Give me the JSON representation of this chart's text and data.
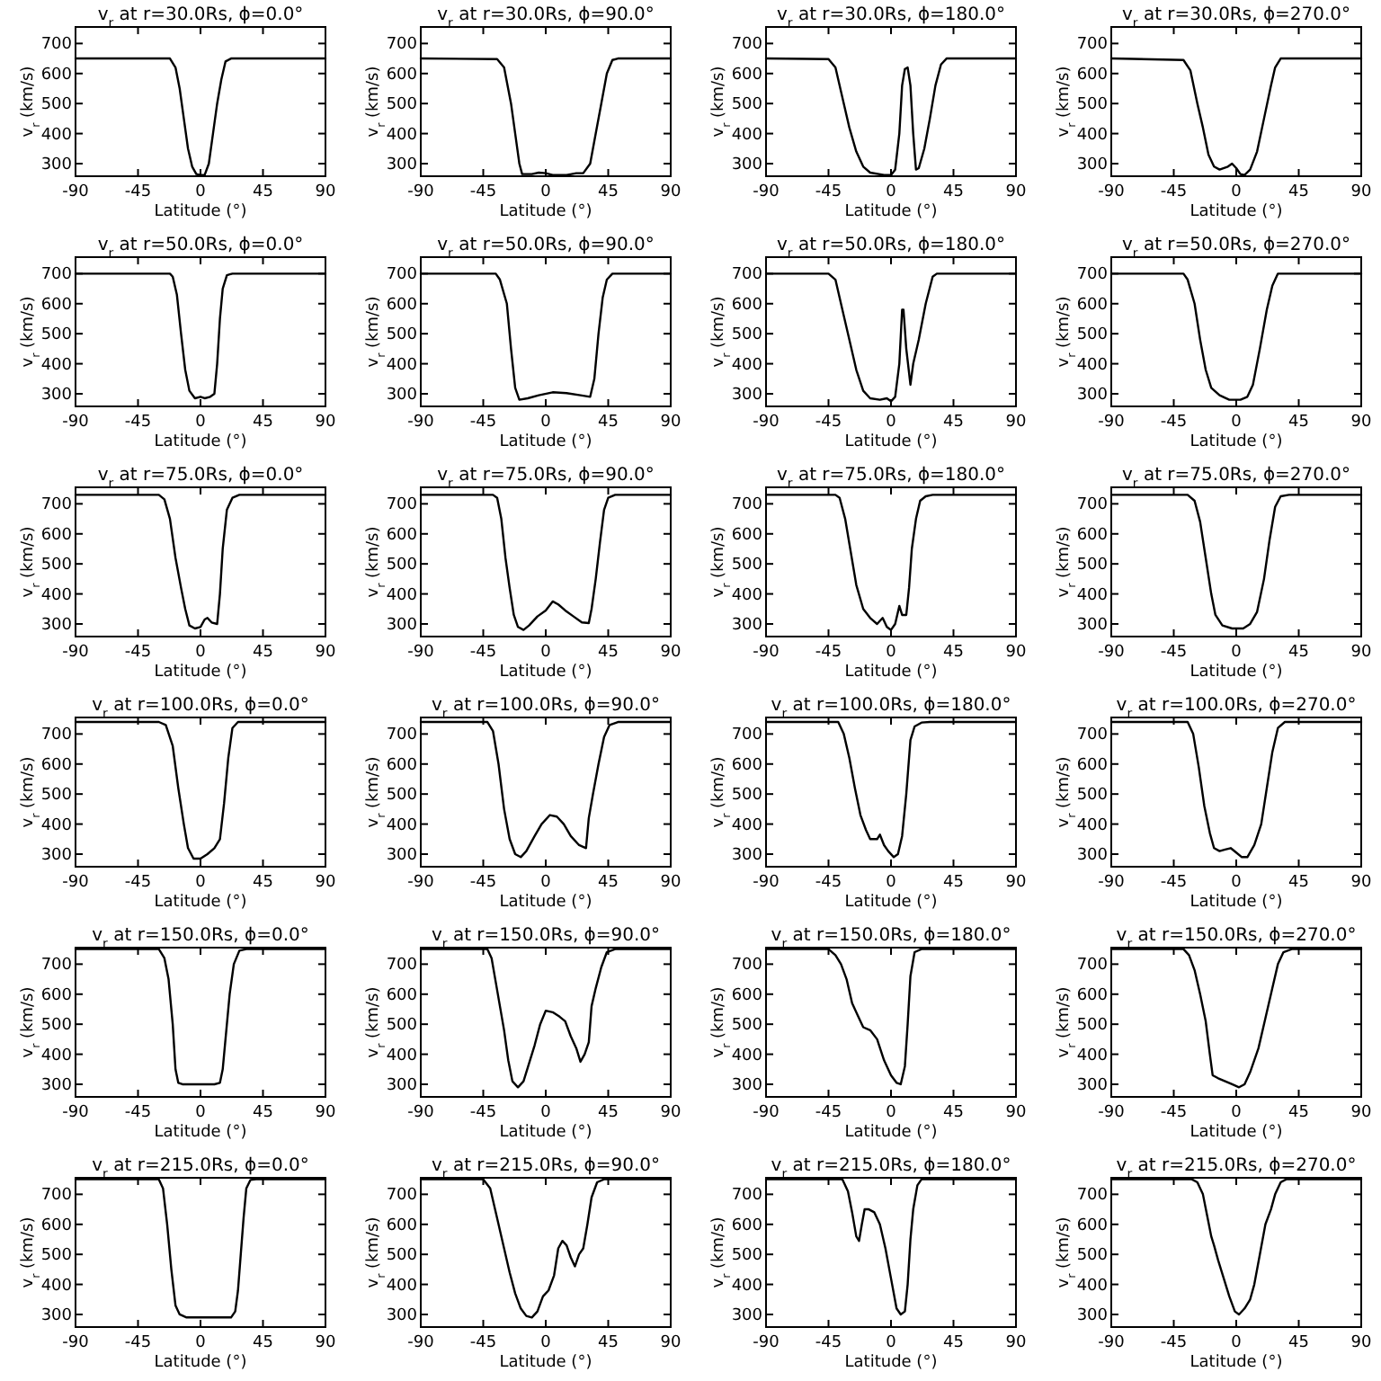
{
  "chart_data": [
    {
      "type": "line",
      "title": "v$_{r}$ at r=30.0Rs, ϕ=0.0°",
      "xlabel": "Latitude (°)",
      "ylabel": "v$_{r}$ (km/s)",
      "xlim": [
        -90,
        90
      ],
      "ylim": [
        258,
        755
      ],
      "xticks": [
        -90,
        -45,
        0,
        45,
        90
      ],
      "yticks": [
        300,
        400,
        500,
        600,
        700
      ],
      "color": "#000000",
      "x": [
        -90,
        -22,
        -18,
        -15,
        -12,
        -9,
        -6,
        -3,
        0,
        3,
        6,
        9,
        12,
        15,
        18,
        22,
        90
      ],
      "values": [
        650,
        650,
        620,
        550,
        450,
        350,
        290,
        265,
        262,
        262,
        300,
        400,
        500,
        580,
        640,
        650,
        650
      ]
    },
    {
      "type": "line",
      "title": "v$_{r}$ at r=30.0Rs, ϕ=90.0°",
      "xlabel": "Latitude (°)",
      "ylabel": "v$_{r}$ (km/s)",
      "xlim": [
        -90,
        90
      ],
      "ylim": [
        258,
        755
      ],
      "xticks": [
        -90,
        -45,
        0,
        45,
        90
      ],
      "yticks": [
        300,
        400,
        500,
        600,
        700
      ],
      "color": "#000000",
      "x": [
        -90,
        -35,
        -30,
        -25,
        -22,
        -19,
        -17,
        -10,
        -5,
        0,
        5,
        15,
        22,
        27,
        32,
        36,
        40,
        44,
        48,
        52,
        90
      ],
      "values": [
        650,
        648,
        620,
        500,
        400,
        300,
        265,
        265,
        270,
        268,
        262,
        262,
        268,
        268,
        300,
        400,
        500,
        600,
        645,
        650,
        650
      ]
    },
    {
      "type": "line",
      "title": "v$_{r}$ at r=30.0Rs, ϕ=180.0°",
      "xlabel": "Latitude (°)",
      "ylabel": "v$_{r}$ (km/s)",
      "xlim": [
        -90,
        90
      ],
      "ylim": [
        258,
        755
      ],
      "xticks": [
        -90,
        -45,
        0,
        45,
        90
      ],
      "yticks": [
        300,
        400,
        500,
        600,
        700
      ],
      "color": "#000000",
      "x": [
        -90,
        -45,
        -40,
        -35,
        -30,
        -25,
        -20,
        -15,
        -5,
        0,
        3,
        6,
        8,
        10,
        12,
        14,
        16,
        18,
        20,
        24,
        28,
        32,
        36,
        40,
        90
      ],
      "values": [
        650,
        648,
        620,
        520,
        420,
        340,
        290,
        270,
        262,
        262,
        280,
        400,
        560,
        615,
        620,
        560,
        400,
        280,
        285,
        350,
        450,
        560,
        630,
        650,
        650
      ]
    },
    {
      "type": "line",
      "title": "v$_{r}$ at r=30.0Rs, ϕ=270.0°",
      "xlabel": "Latitude (°)",
      "ylabel": "v$_{r}$ (km/s)",
      "xlim": [
        -90,
        90
      ],
      "ylim": [
        258,
        755
      ],
      "xticks": [
        -90,
        -45,
        0,
        45,
        90
      ],
      "yticks": [
        300,
        400,
        500,
        600,
        700
      ],
      "color": "#000000",
      "x": [
        -90,
        -38,
        -33,
        -28,
        -24,
        -20,
        -16,
        -12,
        -6,
        -3,
        0,
        3,
        6,
        10,
        15,
        20,
        25,
        28,
        32,
        90
      ],
      "values": [
        650,
        645,
        610,
        500,
        420,
        330,
        290,
        280,
        290,
        300,
        285,
        265,
        262,
        280,
        340,
        450,
        560,
        620,
        650,
        650
      ]
    },
    {
      "type": "line",
      "title": "v$_{r}$ at r=50.0Rs, ϕ=0.0°",
      "xlabel": "Latitude (°)",
      "ylabel": "v$_{r}$ (km/s)",
      "xlim": [
        -90,
        90
      ],
      "ylim": [
        258,
        755
      ],
      "xticks": [
        -90,
        -45,
        0,
        45,
        90
      ],
      "yticks": [
        300,
        400,
        500,
        600,
        700
      ],
      "color": "#000000",
      "x": [
        -90,
        -22,
        -20,
        -17,
        -14,
        -11,
        -8,
        -4,
        0,
        3,
        7,
        10,
        12,
        14,
        16,
        19,
        23,
        90
      ],
      "values": [
        700,
        700,
        690,
        630,
        500,
        380,
        310,
        285,
        290,
        285,
        290,
        300,
        400,
        550,
        650,
        695,
        700,
        700
      ]
    },
    {
      "type": "line",
      "title": "v$_{r}$ at r=50.0Rs, ϕ=90.0°",
      "xlabel": "Latitude (°)",
      "ylabel": "v$_{r}$ (km/s)",
      "xlim": [
        -90,
        90
      ],
      "ylim": [
        258,
        755
      ],
      "xticks": [
        -90,
        -45,
        0,
        45,
        90
      ],
      "yticks": [
        300,
        400,
        500,
        600,
        700
      ],
      "color": "#000000",
      "x": [
        -90,
        -36,
        -33,
        -28,
        -25,
        -22,
        -19,
        -13,
        -5,
        5,
        15,
        25,
        32,
        35,
        38,
        41,
        44,
        48,
        90
      ],
      "values": [
        700,
        700,
        680,
        600,
        450,
        320,
        280,
        285,
        295,
        305,
        302,
        295,
        290,
        350,
        500,
        620,
        680,
        700,
        700
      ]
    },
    {
      "type": "line",
      "title": "v$_{r}$ at r=50.0Rs, ϕ=180.0°",
      "xlabel": "Latitude (°)",
      "ylabel": "v$_{r}$ (km/s)",
      "xlim": [
        -90,
        90
      ],
      "ylim": [
        258,
        755
      ],
      "xticks": [
        -90,
        -45,
        0,
        45,
        90
      ],
      "yticks": [
        300,
        400,
        500,
        600,
        700
      ],
      "color": "#000000",
      "x": [
        -90,
        -45,
        -40,
        -35,
        -30,
        -25,
        -20,
        -15,
        -8,
        -3,
        0,
        3,
        6,
        8,
        9,
        11,
        14,
        16,
        20,
        25,
        30,
        33,
        90
      ],
      "values": [
        700,
        700,
        680,
        580,
        480,
        380,
        310,
        285,
        280,
        285,
        275,
        290,
        400,
        580,
        580,
        450,
        330,
        400,
        480,
        600,
        690,
        700,
        700
      ]
    },
    {
      "type": "line",
      "title": "v$_{r}$ at r=50.0Rs, ϕ=270.0°",
      "xlabel": "Latitude (°)",
      "ylabel": "v$_{r}$ (km/s)",
      "xlim": [
        -90,
        90
      ],
      "ylim": [
        258,
        755
      ],
      "xticks": [
        -90,
        -45,
        0,
        45,
        90
      ],
      "yticks": [
        300,
        400,
        500,
        600,
        700
      ],
      "color": "#000000",
      "x": [
        -90,
        -38,
        -35,
        -30,
        -26,
        -22,
        -18,
        -12,
        -5,
        3,
        8,
        12,
        17,
        22,
        26,
        30,
        90
      ],
      "values": [
        700,
        700,
        680,
        600,
        480,
        380,
        320,
        295,
        280,
        280,
        290,
        330,
        450,
        580,
        660,
        700,
        700
      ]
    },
    {
      "type": "line",
      "title": "v$_{r}$ at r=75.0Rs, ϕ=0.0°",
      "xlabel": "Latitude (°)",
      "ylabel": "v$_{r}$ (km/s)",
      "xlim": [
        -90,
        90
      ],
      "ylim": [
        258,
        755
      ],
      "xticks": [
        -90,
        -45,
        0,
        45,
        90
      ],
      "yticks": [
        300,
        400,
        500,
        600,
        700
      ],
      "color": "#000000",
      "x": [
        -90,
        -30,
        -26,
        -22,
        -18,
        -14,
        -11,
        -8,
        -4,
        0,
        3,
        5,
        8,
        12,
        14,
        16,
        19,
        23,
        28,
        90
      ],
      "values": [
        730,
        730,
        715,
        650,
        520,
        420,
        350,
        295,
        285,
        290,
        315,
        320,
        305,
        300,
        400,
        550,
        680,
        720,
        730,
        730
      ]
    },
    {
      "type": "line",
      "title": "v$_{r}$ at r=75.0Rs, ϕ=90.0°",
      "xlabel": "Latitude (°)",
      "ylabel": "v$_{r}$ (km/s)",
      "xlim": [
        -90,
        90
      ],
      "ylim": [
        258,
        755
      ],
      "xticks": [
        -90,
        -45,
        0,
        45,
        90
      ],
      "yticks": [
        300,
        400,
        500,
        600,
        700
      ],
      "color": "#000000",
      "x": [
        -90,
        -38,
        -35,
        -32,
        -29,
        -26,
        -23,
        -20,
        -16,
        -12,
        -6,
        0,
        5,
        9,
        14,
        20,
        26,
        31,
        33,
        36,
        39,
        42,
        45,
        50,
        90
      ],
      "values": [
        730,
        730,
        720,
        650,
        520,
        420,
        330,
        290,
        280,
        295,
        325,
        345,
        375,
        365,
        345,
        325,
        305,
        303,
        350,
        450,
        570,
        680,
        720,
        730,
        730
      ]
    },
    {
      "type": "line",
      "title": "v$_{r}$ at r=75.0Rs, ϕ=180.0°",
      "xlabel": "Latitude (°)",
      "ylabel": "v$_{r}$ (km/s)",
      "xlim": [
        -90,
        90
      ],
      "ylim": [
        258,
        755
      ],
      "xticks": [
        -90,
        -45,
        0,
        45,
        90
      ],
      "yticks": [
        300,
        400,
        500,
        600,
        700
      ],
      "color": "#000000",
      "x": [
        -90,
        -40,
        -37,
        -33,
        -29,
        -25,
        -20,
        -15,
        -10,
        -6,
        -3,
        0,
        3,
        6,
        8,
        11,
        13,
        15,
        18,
        21,
        25,
        30,
        90
      ],
      "values": [
        730,
        730,
        720,
        650,
        540,
        430,
        350,
        320,
        300,
        320,
        290,
        280,
        300,
        360,
        330,
        330,
        420,
        550,
        650,
        710,
        725,
        730,
        730
      ]
    },
    {
      "type": "line",
      "title": "v$_{r}$ at r=75.0Rs, ϕ=270.0°",
      "xlabel": "Latitude (°)",
      "ylabel": "v$_{r}$ (km/s)",
      "xlim": [
        -90,
        90
      ],
      "ylim": [
        258,
        755
      ],
      "xticks": [
        -90,
        -45,
        0,
        45,
        90
      ],
      "yticks": [
        300,
        400,
        500,
        600,
        700
      ],
      "color": "#000000",
      "x": [
        -90,
        -35,
        -30,
        -26,
        -22,
        -18,
        -15,
        -10,
        -3,
        5,
        10,
        15,
        20,
        24,
        28,
        32,
        38,
        90
      ],
      "values": [
        730,
        730,
        710,
        640,
        520,
        400,
        330,
        295,
        285,
        285,
        300,
        340,
        450,
        580,
        690,
        725,
        730,
        730
      ]
    },
    {
      "type": "line",
      "title": "v$_{r}$ at r=100.0Rs, ϕ=0.0°",
      "xlabel": "Latitude (°)",
      "ylabel": "v$_{r}$ (km/s)",
      "xlim": [
        -90,
        90
      ],
      "ylim": [
        258,
        755
      ],
      "xticks": [
        -90,
        -45,
        0,
        45,
        90
      ],
      "yticks": [
        300,
        400,
        500,
        600,
        700
      ],
      "color": "#000000",
      "x": [
        -90,
        -30,
        -25,
        -20,
        -16,
        -12,
        -9,
        -5,
        0,
        5,
        10,
        14,
        17,
        20,
        23,
        27,
        90
      ],
      "values": [
        740,
        740,
        730,
        660,
        520,
        400,
        320,
        285,
        285,
        300,
        320,
        350,
        470,
        620,
        720,
        740,
        740
      ]
    },
    {
      "type": "line",
      "title": "v$_{r}$ at r=100.0Rs, ϕ=90.0°",
      "xlabel": "Latitude (°)",
      "ylabel": "v$_{r}$ (km/s)",
      "xlim": [
        -90,
        90
      ],
      "ylim": [
        258,
        755
      ],
      "xticks": [
        -90,
        -45,
        0,
        45,
        90
      ],
      "yticks": [
        300,
        400,
        500,
        600,
        700
      ],
      "color": "#000000",
      "x": [
        -90,
        -42,
        -38,
        -34,
        -30,
        -26,
        -22,
        -18,
        -14,
        -8,
        -3,
        3,
        8,
        13,
        18,
        24,
        29,
        31,
        34,
        38,
        42,
        46,
        52,
        90
      ],
      "values": [
        740,
        740,
        710,
        600,
        450,
        350,
        300,
        290,
        310,
        360,
        400,
        430,
        425,
        400,
        360,
        330,
        320,
        420,
        500,
        600,
        690,
        730,
        740,
        740
      ]
    },
    {
      "type": "line",
      "title": "v$_{r}$ at r=100.0Rs, ϕ=180.0°",
      "xlabel": "Latitude (°)",
      "ylabel": "v$_{r}$ (km/s)",
      "xlim": [
        -90,
        90
      ],
      "ylim": [
        258,
        755
      ],
      "xticks": [
        -90,
        -45,
        0,
        45,
        90
      ],
      "yticks": [
        300,
        400,
        500,
        600,
        700
      ],
      "color": "#000000",
      "x": [
        -90,
        -38,
        -34,
        -30,
        -26,
        -22,
        -18,
        -15,
        -10,
        -8,
        -5,
        -2,
        2,
        5,
        8,
        11,
        14,
        17,
        22,
        28,
        90
      ],
      "values": [
        740,
        740,
        700,
        620,
        520,
        430,
        380,
        350,
        350,
        365,
        330,
        310,
        290,
        300,
        360,
        500,
        680,
        725,
        738,
        740,
        740
      ]
    },
    {
      "type": "line",
      "title": "v$_{r}$ at r=100.0Rs, ϕ=270.0°",
      "xlabel": "Latitude (°)",
      "ylabel": "v$_{r}$ (km/s)",
      "xlim": [
        -90,
        90
      ],
      "ylim": [
        258,
        755
      ],
      "xticks": [
        -90,
        -45,
        0,
        45,
        90
      ],
      "yticks": [
        300,
        400,
        500,
        600,
        700
      ],
      "color": "#000000",
      "x": [
        -90,
        -35,
        -31,
        -27,
        -23,
        -19,
        -16,
        -12,
        -8,
        -4,
        0,
        4,
        8,
        13,
        18,
        22,
        26,
        30,
        35,
        90
      ],
      "values": [
        740,
        740,
        700,
        590,
        460,
        370,
        320,
        310,
        315,
        320,
        305,
        290,
        290,
        330,
        400,
        520,
        640,
        720,
        740,
        740
      ]
    },
    {
      "type": "line",
      "title": "v$_{r}$ at r=150.0Rs, ϕ=0.0°",
      "xlabel": "Latitude (°)",
      "ylabel": "v$_{r}$ (km/s)",
      "xlim": [
        -90,
        90
      ],
      "ylim": [
        258,
        755
      ],
      "xticks": [
        -90,
        -45,
        0,
        45,
        90
      ],
      "yticks": [
        300,
        400,
        500,
        600,
        700
      ],
      "color": "#000000",
      "x": [
        -90,
        -30,
        -26,
        -23,
        -20,
        -18,
        -16,
        -13,
        10,
        14,
        16,
        18,
        21,
        24,
        28,
        33,
        90
      ],
      "values": [
        750,
        750,
        720,
        650,
        500,
        350,
        305,
        300,
        300,
        305,
        350,
        450,
        600,
        700,
        745,
        750,
        750
      ]
    },
    {
      "type": "line",
      "title": "v$_{r}$ at r=150.0Rs, ϕ=90.0°",
      "xlabel": "Latitude (°)",
      "ylabel": "v$_{r}$ (km/s)",
      "xlim": [
        -90,
        90
      ],
      "ylim": [
        258,
        755
      ],
      "xticks": [
        -90,
        -45,
        0,
        45,
        90
      ],
      "yticks": [
        300,
        400,
        500,
        600,
        700
      ],
      "color": "#000000",
      "x": [
        -90,
        -42,
        -39,
        -36,
        -33,
        -30,
        -27,
        -24,
        -20,
        -16,
        -12,
        -8,
        -4,
        0,
        5,
        10,
        14,
        18,
        22,
        25,
        28,
        31,
        33,
        36,
        40,
        44,
        50,
        90
      ],
      "values": [
        750,
        750,
        720,
        640,
        560,
        480,
        380,
        310,
        290,
        310,
        370,
        430,
        500,
        545,
        540,
        525,
        510,
        460,
        420,
        375,
        400,
        440,
        560,
        620,
        690,
        740,
        750,
        750
      ]
    },
    {
      "type": "line",
      "title": "v$_{r}$ at r=150.0Rs, ϕ=180.0°",
      "xlabel": "Latitude (°)",
      "ylabel": "v$_{r}$ (km/s)",
      "xlim": [
        -90,
        90
      ],
      "ylim": [
        258,
        755
      ],
      "xticks": [
        -90,
        -45,
        0,
        45,
        90
      ],
      "yticks": [
        300,
        400,
        500,
        600,
        700
      ],
      "color": "#000000",
      "x": [
        -90,
        -45,
        -40,
        -36,
        -32,
        -28,
        -24,
        -20,
        -15,
        -10,
        -5,
        0,
        4,
        7,
        10,
        12,
        14,
        17,
        22,
        90
      ],
      "values": [
        750,
        750,
        730,
        700,
        650,
        570,
        530,
        490,
        480,
        450,
        380,
        330,
        305,
        300,
        360,
        500,
        660,
        740,
        750,
        750
      ]
    },
    {
      "type": "line",
      "title": "v$_{r}$ at r=150.0Rs, ϕ=270.0°",
      "xlabel": "Latitude (°)",
      "ylabel": "v$_{r}$ (km/s)",
      "xlim": [
        -90,
        90
      ],
      "ylim": [
        258,
        755
      ],
      "xticks": [
        -90,
        -45,
        0,
        45,
        90
      ],
      "yticks": [
        300,
        400,
        500,
        600,
        700
      ],
      "color": "#000000",
      "x": [
        -90,
        -38,
        -34,
        -30,
        -26,
        -22,
        -19,
        -17,
        -13,
        -8,
        -3,
        2,
        6,
        10,
        16,
        21,
        26,
        30,
        34,
        40,
        90
      ],
      "values": [
        750,
        750,
        730,
        680,
        600,
        510,
        400,
        330,
        320,
        310,
        300,
        290,
        300,
        340,
        420,
        520,
        620,
        700,
        740,
        750,
        750
      ]
    },
    {
      "type": "line",
      "title": "v$_{r}$ at r=215.0Rs, ϕ=0.0°",
      "xlabel": "Latitude (°)",
      "ylabel": "v$_{r}$ (km/s)",
      "xlim": [
        -90,
        90
      ],
      "ylim": [
        258,
        755
      ],
      "xticks": [
        -90,
        -45,
        0,
        45,
        90
      ],
      "yticks": [
        300,
        400,
        500,
        600,
        700
      ],
      "color": "#000000",
      "x": [
        -90,
        -30,
        -27,
        -24,
        -21,
        -18,
        -15,
        -10,
        0,
        10,
        22,
        25,
        27,
        29,
        31,
        33,
        36,
        40,
        90
      ],
      "values": [
        750,
        750,
        720,
        600,
        450,
        330,
        300,
        290,
        290,
        290,
        290,
        310,
        380,
        500,
        620,
        720,
        748,
        750,
        750
      ]
    },
    {
      "type": "line",
      "title": "v$_{r}$ at r=215.0Rs, ϕ=90.0°",
      "xlabel": "Latitude (°)",
      "ylabel": "v$_{r}$ (km/s)",
      "xlim": [
        -90,
        90
      ],
      "ylim": [
        258,
        755
      ],
      "xticks": [
        -90,
        -45,
        0,
        45,
        90
      ],
      "yticks": [
        300,
        400,
        500,
        600,
        700
      ],
      "color": "#000000",
      "x": [
        -90,
        -45,
        -40,
        -35,
        -30,
        -26,
        -22,
        -18,
        -14,
        -10,
        -6,
        -2,
        2,
        6,
        9,
        12,
        15,
        18,
        21,
        24,
        27,
        30,
        33,
        37,
        42,
        90
      ],
      "values": [
        750,
        750,
        720,
        620,
        520,
        440,
        370,
        320,
        295,
        290,
        310,
        360,
        380,
        430,
        520,
        545,
        530,
        490,
        460,
        500,
        520,
        600,
        690,
        740,
        750,
        750
      ]
    },
    {
      "type": "line",
      "title": "v$_{r}$ at r=215.0Rs, ϕ=180.0°",
      "xlabel": "Latitude (°)",
      "ylabel": "v$_{r}$ (km/s)",
      "xlim": [
        -90,
        90
      ],
      "ylim": [
        258,
        755
      ],
      "xticks": [
        -90,
        -45,
        0,
        45,
        90
      ],
      "yticks": [
        300,
        400,
        500,
        600,
        700
      ],
      "color": "#000000",
      "x": [
        -90,
        -35,
        -31,
        -28,
        -25,
        -23,
        -21,
        -19,
        -16,
        -12,
        -8,
        -4,
        0,
        4,
        7,
        10,
        12,
        14,
        16,
        19,
        22,
        90
      ],
      "values": [
        750,
        750,
        710,
        640,
        560,
        545,
        600,
        650,
        650,
        640,
        600,
        520,
        420,
        320,
        300,
        310,
        400,
        550,
        650,
        730,
        750,
        750
      ]
    },
    {
      "type": "line",
      "title": "v$_{r}$ at r=215.0Rs, ϕ=270.0°",
      "xlabel": "Latitude (°)",
      "ylabel": "v$_{r}$ (km/s)",
      "xlim": [
        -90,
        90
      ],
      "ylim": [
        258,
        755
      ],
      "xticks": [
        -90,
        -45,
        0,
        45,
        90
      ],
      "yticks": [
        300,
        400,
        500,
        600,
        700
      ],
      "color": "#000000",
      "x": [
        -90,
        -32,
        -28,
        -24,
        -21,
        -18,
        -16,
        -13,
        -9,
        -5,
        -1,
        2,
        6,
        10,
        13,
        17,
        21,
        25,
        28,
        32,
        36,
        90
      ],
      "values": [
        750,
        750,
        740,
        700,
        630,
        560,
        530,
        480,
        420,
        360,
        310,
        300,
        320,
        350,
        400,
        500,
        600,
        650,
        700,
        740,
        750,
        750
      ]
    }
  ]
}
